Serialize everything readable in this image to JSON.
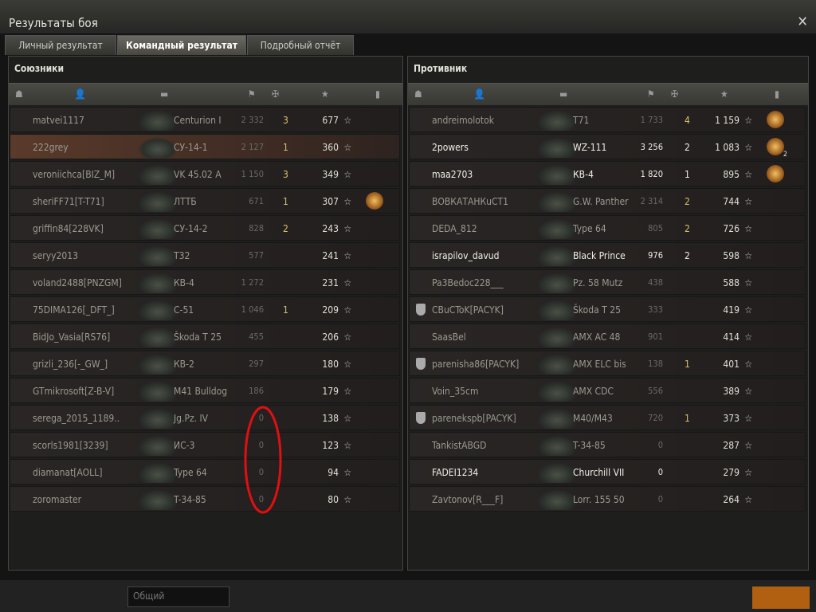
{
  "header": {
    "title": "Результаты боя",
    "tabs": [
      "Личный результат",
      "Командный результат",
      "Подробный отчёт"
    ]
  },
  "teams": [
    {
      "name": "Союзники",
      "rows": [
        {
          "player": "matvei1117",
          "tank": "Centurion I",
          "damage": "2 332",
          "kills": "3",
          "xp": "677"
        },
        {
          "player": "222grey",
          "tank": "СУ-14-1",
          "damage": "2 127",
          "kills": "1",
          "xp": "360",
          "self": true
        },
        {
          "player": "veroniichca[BIZ_M]",
          "tank": "VK 45.02 A",
          "damage": "1 150",
          "kills": "3",
          "xp": "349"
        },
        {
          "player": "sheriFF71[T-T71]",
          "tank": "ЛТТБ",
          "damage": "671",
          "kills": "1",
          "xp": "307",
          "medals": 1
        },
        {
          "player": "griffin84[228VK]",
          "tank": "СУ-14-2",
          "damage": "828",
          "kills": "2",
          "xp": "243"
        },
        {
          "player": "seryy2013",
          "tank": "T32",
          "damage": "577",
          "kills": null,
          "xp": "241"
        },
        {
          "player": "voland2488[PNZGM]",
          "tank": "КВ-4",
          "damage": "1 272",
          "kills": null,
          "xp": "231"
        },
        {
          "player": "75DIMA126[_DFT_]",
          "tank": "С-51",
          "damage": "1 046",
          "kills": "1",
          "xp": "209"
        },
        {
          "player": "BidJo_Vasia[RS76]",
          "tank": "Škoda T 25",
          "damage": "455",
          "kills": null,
          "xp": "206"
        },
        {
          "player": "grizli_236[-_GW_]",
          "tank": "КВ-2",
          "damage": "297",
          "kills": null,
          "xp": "180"
        },
        {
          "player": "GTmikrosoft[Z-B-V]",
          "tank": "M41 Bulldog",
          "damage": "186",
          "kills": null,
          "xp": "179"
        },
        {
          "player": "serega_2015_1189..",
          "tank": "Jg.Pz. IV",
          "damage": "0",
          "kills": null,
          "xp": "138"
        },
        {
          "player": "scorls1981[3239]",
          "tank": "ИС-3",
          "damage": "0",
          "kills": null,
          "xp": "123"
        },
        {
          "player": "diamanat[AOLL]",
          "tank": "Type 64",
          "damage": "0",
          "kills": null,
          "xp": "94"
        },
        {
          "player": "zoromaster",
          "tank": "T-34-85",
          "damage": "0",
          "kills": null,
          "xp": "80"
        }
      ]
    },
    {
      "name": "Противник",
      "rows": [
        {
          "player": "andreimolotok",
          "tank": "T71",
          "damage": "1 733",
          "kills": "4",
          "xp": "1 159",
          "medals": 1
        },
        {
          "player": "2powers",
          "tank": "WZ-111",
          "damage": "3 256",
          "kills": "2",
          "xp": "1 083",
          "medals": 2,
          "alive": true
        },
        {
          "player": "maa2703",
          "tank": "КВ-4",
          "damage": "1 820",
          "kills": "1",
          "xp": "895",
          "medals": 1,
          "alive": true
        },
        {
          "player": "ВОВКАТАНКuСТ1",
          "tank": "G.W. Panther",
          "damage": "2 314",
          "kills": "2",
          "xp": "744"
        },
        {
          "player": "DEDA_812",
          "tank": "Type 64",
          "damage": "805",
          "kills": "2",
          "xp": "726"
        },
        {
          "player": "israpilov_davud",
          "tank": "Black Prince",
          "damage": "976",
          "kills": "2",
          "xp": "598",
          "alive": true
        },
        {
          "player": "Pa3Bedoc228___",
          "tank": "Pz. 58 Mutz",
          "damage": "438",
          "kills": null,
          "xp": "588"
        },
        {
          "player": "CBuCToK[PACYK]",
          "tank": "Škoda T 25",
          "damage": "333",
          "kills": null,
          "xp": "419",
          "clan": true
        },
        {
          "player": "SaasBel",
          "tank": "AMX AC 48",
          "damage": "901",
          "kills": null,
          "xp": "414"
        },
        {
          "player": "parenisha86[PACYK]",
          "tank": "AMX ELC bis",
          "damage": "138",
          "kills": "1",
          "xp": "401",
          "clan": true
        },
        {
          "player": "Voin_35cm",
          "tank": "AMX CDC",
          "damage": "556",
          "kills": null,
          "xp": "389"
        },
        {
          "player": "parenekspb[PACYK]",
          "tank": "M40/M43",
          "damage": "720",
          "kills": "1",
          "xp": "373",
          "clan": true
        },
        {
          "player": "TankistABGD",
          "tank": "T-34-85",
          "damage": "0",
          "kills": null,
          "xp": "287"
        },
        {
          "player": "FADEI1234",
          "tank": "Churchill VII",
          "damage": "0",
          "kills": null,
          "xp": "279",
          "alive": true
        },
        {
          "player": "Zavtonov[R___F]",
          "tank": "Lorr. 155 50",
          "damage": "0",
          "kills": null,
          "xp": "264"
        }
      ]
    }
  ],
  "footer": {
    "chat_channel": "Общий"
  }
}
